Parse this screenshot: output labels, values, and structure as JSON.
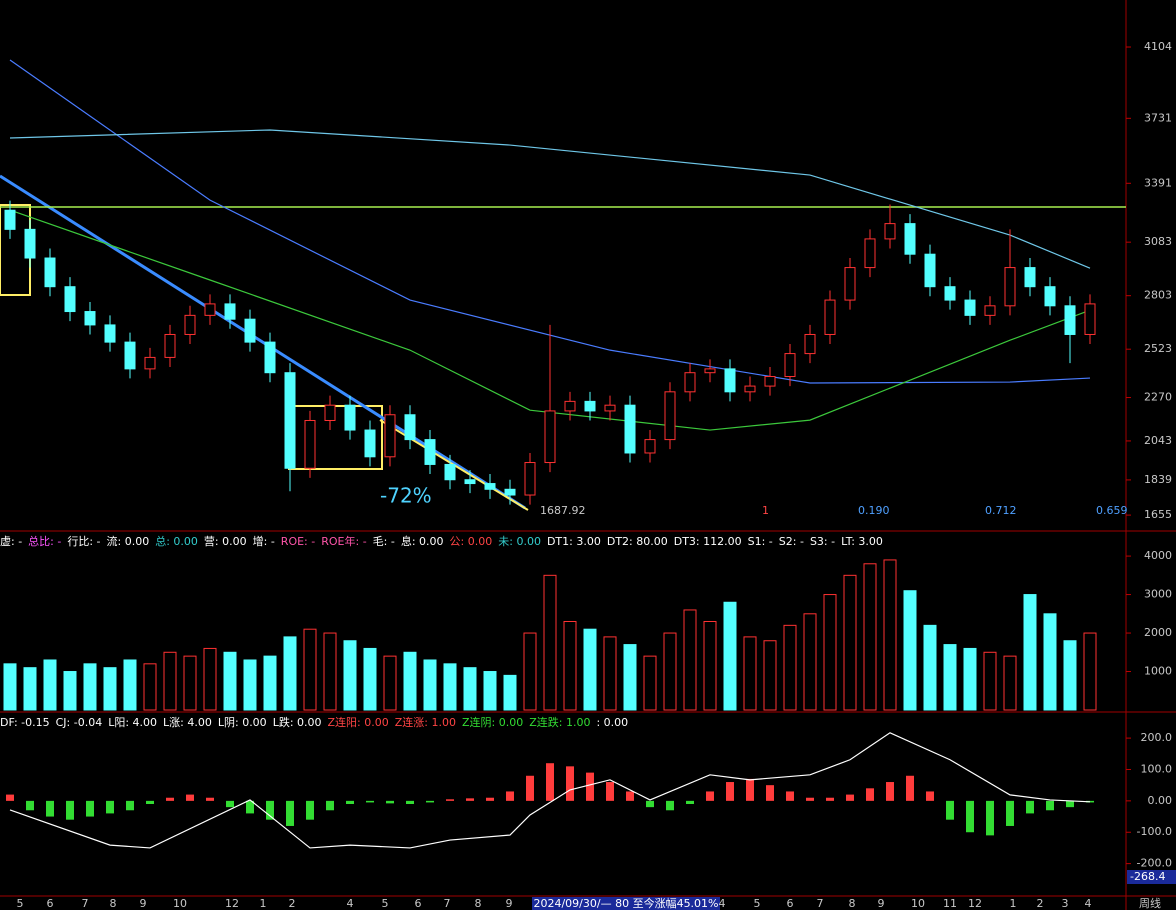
{
  "chart_data": [
    {
      "type": "candlestick",
      "open": [
        3250,
        3150,
        3000,
        2850,
        2720,
        2650,
        2560,
        2420,
        2480,
        2600,
        2700,
        2760,
        2680,
        2560,
        2400,
        1900,
        2150,
        2230,
        2100,
        1960,
        2180,
        2050,
        1920,
        1840,
        1820,
        1790,
        1760,
        1930,
        2200,
        2250,
        2200,
        2230,
        1980,
        2050,
        2300,
        2400,
        2420,
        2300,
        2330,
        2380,
        2500,
        2600,
        2780,
        2950,
        3100,
        3180,
        3020,
        2850,
        2780,
        2700,
        2750,
        2950,
        2850,
        2750,
        2600
      ],
      "high": [
        3300,
        3200,
        3050,
        2900,
        2770,
        2700,
        2610,
        2530,
        2650,
        2750,
        2810,
        2810,
        2730,
        2610,
        2450,
        2200,
        2280,
        2280,
        2150,
        2230,
        2230,
        2100,
        1970,
        1890,
        1870,
        1840,
        1980,
        2650,
        2300,
        2300,
        2280,
        2280,
        2100,
        2350,
        2450,
        2470,
        2470,
        2380,
        2430,
        2550,
        2650,
        2830,
        3000,
        3150,
        3280,
        3230,
        3070,
        2900,
        2830,
        2800,
        3150,
        3000,
        2900,
        2800,
        2810
      ],
      "low": [
        3100,
        2950,
        2800,
        2670,
        2600,
        2510,
        2370,
        2370,
        2430,
        2550,
        2650,
        2630,
        2510,
        2350,
        1780,
        1850,
        2100,
        2050,
        1910,
        1910,
        2000,
        1870,
        1790,
        1770,
        1740,
        1710,
        1710,
        1880,
        2150,
        2150,
        2150,
        1930,
        1930,
        2000,
        2250,
        2350,
        2250,
        2250,
        2280,
        2330,
        2450,
        2550,
        2730,
        2900,
        3050,
        2970,
        2800,
        2730,
        2650,
        2650,
        2700,
        2800,
        2700,
        2450,
        2550
      ],
      "close": [
        3150,
        3000,
        2850,
        2720,
        2650,
        2560,
        2420,
        2480,
        2600,
        2700,
        2760,
        2680,
        2560,
        2400,
        1900,
        2150,
        2230,
        2100,
        1960,
        2180,
        2050,
        1920,
        1840,
        1820,
        1790,
        1760,
        1930,
        2200,
        2250,
        2200,
        2230,
        1980,
        2050,
        2300,
        2400,
        2420,
        2300,
        2330,
        2380,
        2500,
        2600,
        2780,
        2950,
        3100,
        3180,
        3020,
        2850,
        2780,
        2700,
        2750,
        2950,
        2850,
        2750,
        2600,
        2760
      ],
      "up_color": "#ff3232",
      "down_color": "#54ffff",
      "lines": [
        {
          "color": "#4a7cff",
          "x": [
            0,
            10,
            20,
            30,
            40,
            50,
            54
          ],
          "values": [
            4036,
            3303,
            2780,
            2518,
            2346,
            2351,
            2372
          ]
        },
        {
          "color": "#6fc7e8",
          "x": [
            0,
            13,
            25,
            40,
            50,
            54
          ],
          "values": [
            3628,
            3670,
            3591,
            3434,
            3120,
            2947
          ]
        },
        {
          "color": "#3cc83c",
          "x": [
            0,
            10,
            20,
            26,
            35,
            40,
            45,
            50,
            54
          ],
          "values": [
            3251,
            2885,
            2518,
            2204,
            2100,
            2152,
            2361,
            2570,
            2727
          ]
        }
      ],
      "level_line": {
        "value": 3267,
        "color": "#a8f050"
      },
      "ylim": [
        1577,
        4350
      ],
      "yticks": [
        4104,
        3731,
        3391,
        3083,
        2803,
        2523,
        2270,
        2043,
        1839,
        1655
      ],
      "annotations": [
        "-72%",
        "1687.92",
        "1",
        "0.190",
        "0.712",
        "0.659"
      ]
    },
    {
      "type": "volume",
      "values": [
        1200,
        1100,
        1300,
        1000,
        1200,
        1100,
        1300,
        1200,
        1500,
        1400,
        1600,
        1500,
        1300,
        1400,
        1900,
        2100,
        2000,
        1800,
        1600,
        1400,
        1500,
        1300,
        1200,
        1100,
        1000,
        900,
        2000,
        3500,
        2300,
        2100,
        1900,
        1700,
        1400,
        2000,
        2600,
        2300,
        2800,
        1900,
        1800,
        2200,
        2500,
        3000,
        3500,
        3800,
        3900,
        3100,
        2200,
        1700,
        1600,
        1500,
        1400,
        3000,
        2500,
        1800,
        2000
      ],
      "ylim": [
        0,
        4600
      ],
      "yticks": [
        4000,
        3000,
        2000,
        1000
      ],
      "info": [
        {
          "text": "虚: -",
          "color": "#ffffff"
        },
        {
          "text": "总比: -",
          "color": "#ff55ff"
        },
        {
          "text": "行比: -",
          "color": "#ffffff"
        },
        {
          "text": "流: 0.00",
          "color": "#ffffff"
        },
        {
          "text": "总: 0.00",
          "color": "#33cccc"
        },
        {
          "text": "营: 0.00",
          "color": "#ffffff"
        },
        {
          "text": "增: -",
          "color": "#ffffff"
        },
        {
          "text": "ROE: -",
          "color": "#ff55aa"
        },
        {
          "text": "ROE年: -",
          "color": "#ff55aa"
        },
        {
          "text": "毛: -",
          "color": "#ffffff"
        },
        {
          "text": "息: 0.00",
          "color": "#ffffff"
        },
        {
          "text": "公: 0.00",
          "color": "#ff4444"
        },
        {
          "text": "未: 0.00",
          "color": "#33cccc"
        },
        {
          "text": "DT1: 3.00",
          "color": "#ffffff"
        },
        {
          "text": "DT2: 80.00",
          "color": "#ffffff"
        },
        {
          "text": "DT3: 112.00",
          "color": "#ffffff"
        },
        {
          "text": "S1: -",
          "color": "#ffffff"
        },
        {
          "text": "S2: -",
          "color": "#ffffff"
        },
        {
          "text": "S3: -",
          "color": "#ffffff"
        },
        {
          "text": "LT: 3.00",
          "color": "#ffffff"
        }
      ]
    },
    {
      "type": "macd",
      "values": [
        20,
        -30,
        -50,
        -60,
        -50,
        -40,
        -30,
        -10,
        10,
        20,
        10,
        -20,
        -40,
        -60,
        -80,
        -60,
        -30,
        -10,
        -5,
        -8,
        -10,
        -5,
        5,
        8,
        10,
        30,
        80,
        120,
        110,
        90,
        60,
        30,
        -20,
        -30,
        -10,
        30,
        60,
        70,
        50,
        30,
        10,
        10,
        20,
        40,
        60,
        80,
        30,
        -60,
        -100,
        -110,
        -80,
        -40,
        -30,
        -20,
        -5
      ],
      "pos_color": "#ff3c3c",
      "neg_color": "#33dd33",
      "dif": {
        "color": "#ffffff",
        "x": [
          0,
          5,
          7,
          12,
          15,
          17,
          20,
          22,
          25,
          26,
          28,
          30,
          32,
          35,
          37,
          40,
          42,
          44,
          47,
          50,
          52,
          54
        ],
        "values": [
          -29,
          -141,
          -150,
          3,
          -150,
          -141,
          -150,
          -125,
          -109,
          -45,
          35,
          67,
          3,
          83,
          67,
          83,
          131,
          217,
          131,
          19,
          3,
          -3
        ]
      },
      "ylim": [
        -300,
        280
      ],
      "yticks": [
        {
          "value": 200,
          "label": "200.0"
        },
        {
          "value": 100,
          "label": "100.0"
        },
        {
          "value": 0,
          "label": "0.00"
        },
        {
          "value": -100,
          "label": "-100.0"
        },
        {
          "value": -200,
          "label": "-200.0"
        }
      ],
      "current_label": "-268.4",
      "info": [
        {
          "text": "DF: -0.15",
          "color": "#ffffff"
        },
        {
          "text": "CJ: -0.04",
          "color": "#ffffff"
        },
        {
          "text": "L阳: 4.00",
          "color": "#ffffff"
        },
        {
          "text": "L涨: 4.00",
          "color": "#ffffff"
        },
        {
          "text": "L阴: 0.00",
          "color": "#ffffff"
        },
        {
          "text": "L跌: 0.00",
          "color": "#ffffff"
        },
        {
          "text": "Z连阳: 0.00",
          "color": "#ff4444"
        },
        {
          "text": "Z连涨: 1.00",
          "color": "#ff4444"
        },
        {
          "text": "Z连阴: 0.00",
          "color": "#33dd33"
        },
        {
          "text": "Z连跌: 1.00",
          "color": "#33dd33"
        },
        {
          "text": ": 0.00",
          "color": "#ffffff"
        }
      ]
    }
  ],
  "time_axis": {
    "labels": [
      "5",
      "6",
      "7",
      "8",
      "9",
      "10",
      "12",
      "1",
      "2",
      "4",
      "5",
      "6",
      "7",
      "8",
      "9",
      "2024/09/30/— 80 至今涨幅45.01%",
      "4",
      "5",
      "6",
      "7",
      "8",
      "9",
      "10",
      "11",
      "12",
      "1",
      "2",
      "3",
      "4"
    ],
    "period": "周线"
  }
}
